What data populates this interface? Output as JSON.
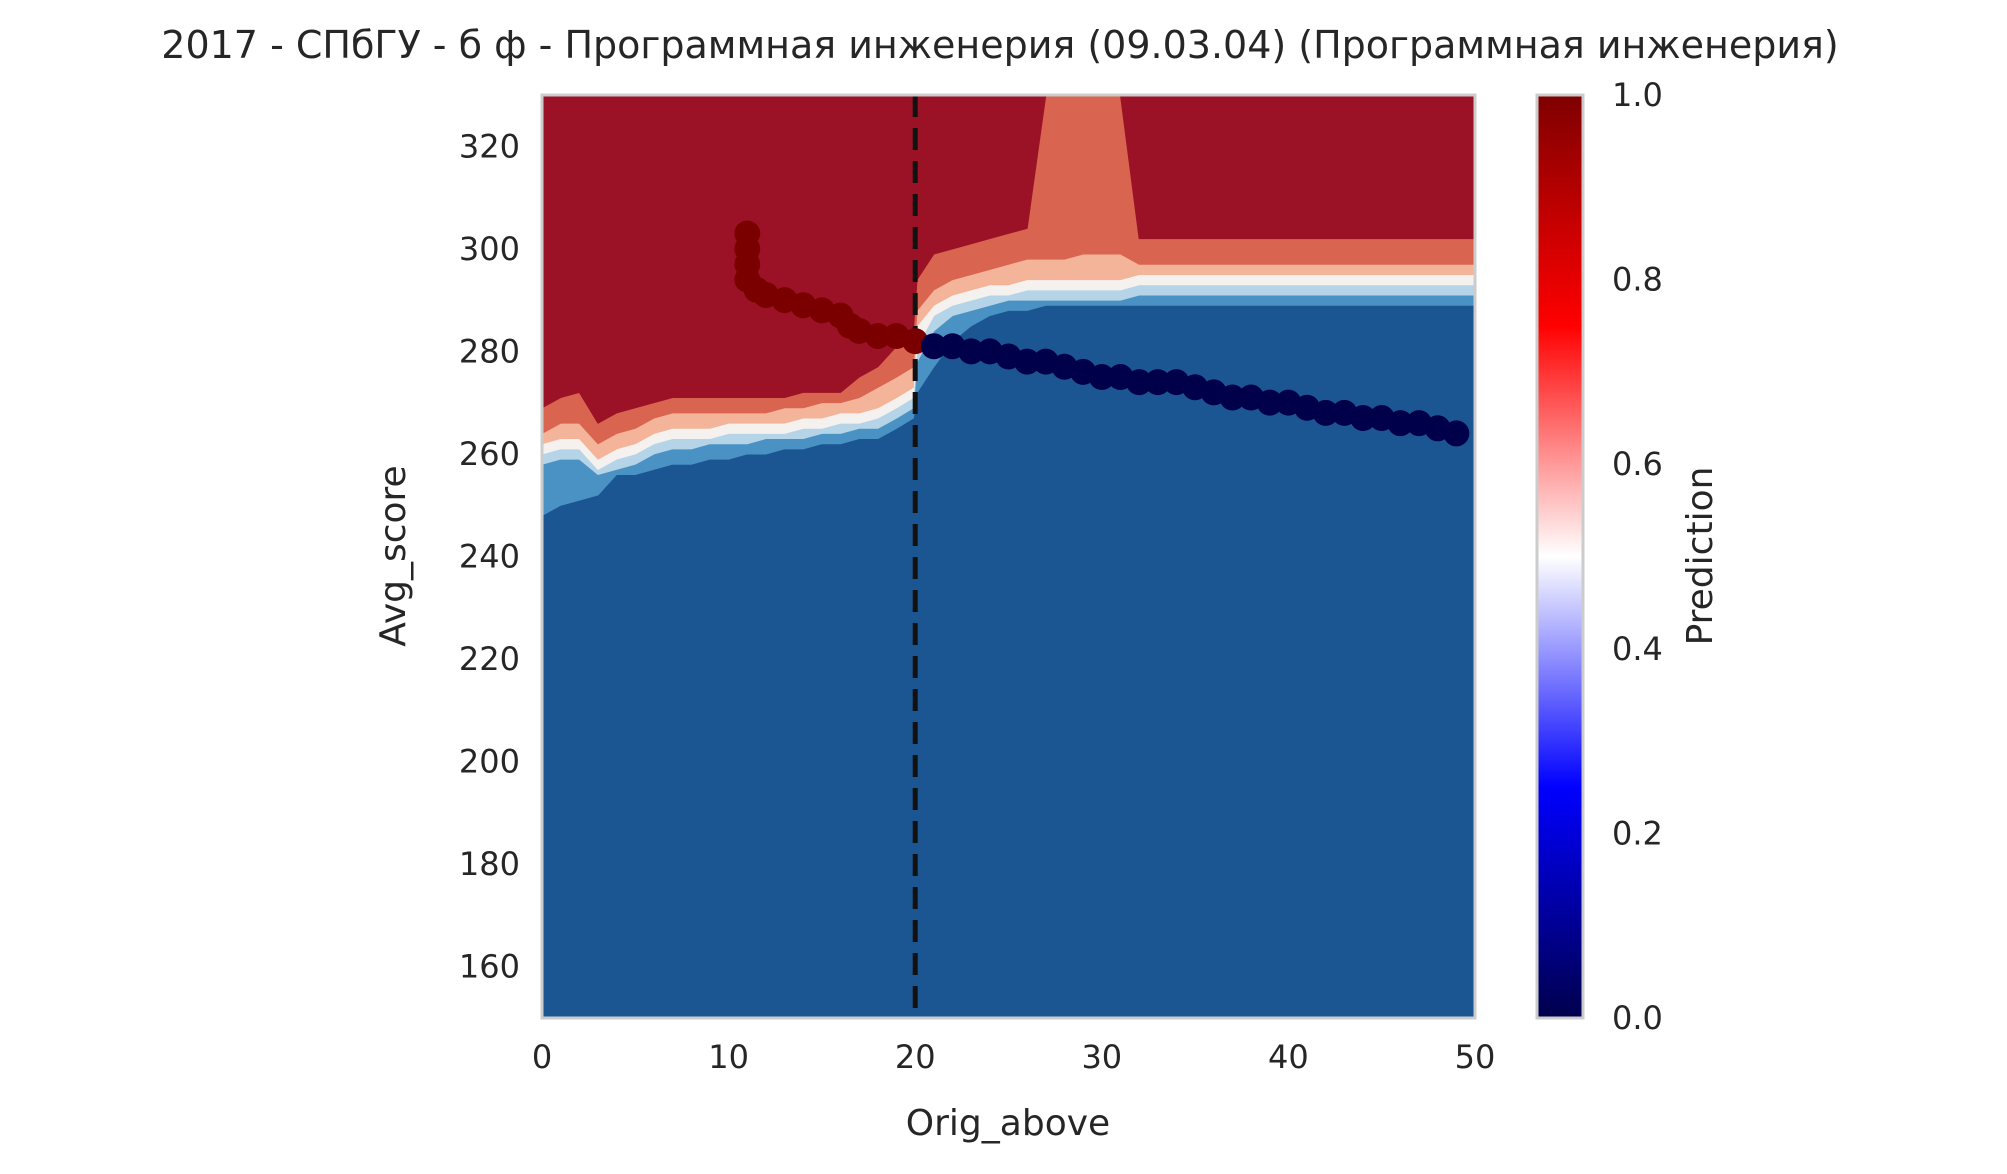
{
  "chart_data": {
    "type": "heatmap",
    "title": "2017 - СПбГУ - б ф - Программная инженерия (09.03.04) (Программная инженерия)",
    "xlabel": "Orig_above",
    "ylabel": "Avg_score",
    "xlim": [
      0,
      50
    ],
    "ylim": [
      150,
      330
    ],
    "x_ticks": [
      "0",
      "10",
      "20",
      "30",
      "40",
      "50"
    ],
    "y_ticks": [
      "160",
      "180",
      "200",
      "220",
      "240",
      "260",
      "280",
      "300",
      "320"
    ],
    "grid": false,
    "threshold_line": {
      "x": 20,
      "style": "dashed",
      "color": "#111111"
    },
    "colorbar": {
      "label": "Prediction",
      "range": [
        0,
        1
      ],
      "ticks": [
        "0.0",
        "0.2",
        "0.4",
        "0.6",
        "0.8",
        "1.0"
      ],
      "colormap": "seismic"
    },
    "region_colors": {
      "high": "#9b1227",
      "upper_mid": "#d96450",
      "mid_high": "#f4b49a",
      "neutral": "#f4f1ef",
      "mid_low": "#b5d4e8",
      "lower_mid": "#4a92c4",
      "low": "#1b5693"
    },
    "boundaries": {
      "x": [
        0,
        1,
        2,
        3,
        4,
        5,
        6,
        7,
        8,
        9,
        10,
        11,
        12,
        13,
        14,
        15,
        16,
        17,
        18,
        19,
        19.9,
        20.1,
        21,
        22,
        23,
        24,
        25,
        26,
        27,
        28,
        29,
        30,
        31,
        32,
        33,
        34,
        35,
        36,
        37,
        38,
        39,
        40,
        41,
        42,
        43,
        44,
        45,
        46,
        47,
        48,
        49,
        50
      ],
      "high": [
        269,
        271,
        272,
        266,
        268,
        269,
        270,
        271,
        271,
        271,
        271,
        271,
        271,
        271,
        272,
        272,
        272,
        275,
        277,
        281,
        284,
        294,
        299,
        300,
        301,
        302,
        303,
        304,
        330,
        330,
        330,
        330,
        330,
        302,
        302,
        302,
        302,
        302,
        302,
        302,
        302,
        302,
        302,
        302,
        302,
        302,
        302,
        302,
        302,
        302,
        302,
        302
      ],
      "upper_mid": [
        264,
        266,
        266,
        262,
        264,
        265,
        267,
        268,
        268,
        268,
        268,
        268,
        268,
        269,
        269,
        270,
        270,
        271,
        273,
        275,
        277,
        288,
        292,
        294,
        295,
        296,
        297,
        298,
        298,
        298,
        299,
        299,
        299,
        297,
        297,
        297,
        297,
        297,
        297,
        297,
        297,
        297,
        297,
        297,
        297,
        297,
        297,
        297,
        297,
        297,
        297,
        297
      ],
      "mid_high": [
        262,
        263,
        263,
        259,
        261,
        262,
        264,
        265,
        265,
        265,
        266,
        266,
        266,
        266,
        267,
        267,
        268,
        268,
        269,
        271,
        273,
        285,
        289,
        291,
        292,
        293,
        293,
        294,
        294,
        294,
        294,
        294,
        294,
        295,
        295,
        295,
        295,
        295,
        295,
        295,
        295,
        295,
        295,
        295,
        295,
        295,
        295,
        295,
        295,
        295,
        295,
        295
      ],
      "neutral": [
        260,
        261,
        261,
        257,
        259,
        260,
        262,
        263,
        263,
        263,
        264,
        264,
        264,
        264,
        265,
        265,
        266,
        266,
        267,
        269,
        271,
        281,
        287,
        289,
        290,
        291,
        291,
        292,
        292,
        292,
        292,
        292,
        292,
        293,
        293,
        293,
        293,
        293,
        293,
        293,
        293,
        293,
        293,
        293,
        293,
        293,
        293,
        293,
        293,
        293,
        293,
        293
      ],
      "mid_low": [
        258,
        259,
        259,
        256,
        257,
        258,
        260,
        261,
        261,
        262,
        262,
        262,
        263,
        263,
        263,
        264,
        264,
        265,
        265,
        267,
        269,
        278,
        284,
        287,
        288,
        289,
        290,
        290,
        290,
        290,
        290,
        290,
        290,
        291,
        291,
        291,
        291,
        291,
        291,
        291,
        291,
        291,
        291,
        291,
        291,
        291,
        291,
        291,
        291,
        291,
        291,
        291
      ],
      "lower_mid": [
        248,
        250,
        251,
        252,
        256,
        256,
        257,
        258,
        258,
        259,
        259,
        260,
        260,
        261,
        261,
        262,
        262,
        263,
        263,
        265,
        267,
        272,
        277,
        282,
        285,
        287,
        288,
        288,
        289,
        289,
        289,
        289,
        289,
        289,
        289,
        289,
        289,
        289,
        289,
        289,
        289,
        289,
        289,
        289,
        289,
        289,
        289,
        289,
        289,
        289,
        289,
        289
      ]
    },
    "series": [
      {
        "marker": "circle",
        "points_high": [
          [
            11,
            303
          ],
          [
            11,
            300
          ],
          [
            11,
            297
          ],
          [
            11,
            294
          ],
          [
            11.5,
            292
          ],
          [
            12,
            291
          ],
          [
            13,
            290
          ],
          [
            14,
            289
          ],
          [
            15,
            288
          ],
          [
            16,
            287
          ],
          [
            16.5,
            285
          ],
          [
            17,
            284
          ],
          [
            18,
            283
          ],
          [
            19,
            283
          ],
          [
            20,
            282
          ]
        ],
        "points_low": [
          [
            21,
            281
          ],
          [
            22,
            281
          ],
          [
            23,
            280
          ],
          [
            24,
            280
          ],
          [
            25,
            279
          ],
          [
            26,
            278
          ],
          [
            27,
            278
          ],
          [
            28,
            277
          ],
          [
            29,
            276
          ],
          [
            30,
            275
          ],
          [
            31,
            275
          ],
          [
            32,
            274
          ],
          [
            33,
            274
          ],
          [
            34,
            274
          ],
          [
            35,
            273
          ],
          [
            36,
            272
          ],
          [
            37,
            271
          ],
          [
            38,
            271
          ],
          [
            39,
            270
          ],
          [
            40,
            270
          ],
          [
            41,
            269
          ],
          [
            42,
            268
          ],
          [
            43,
            268
          ],
          [
            44,
            267
          ],
          [
            45,
            267
          ],
          [
            46,
            266
          ],
          [
            47,
            266
          ],
          [
            48,
            265
          ],
          [
            49,
            264
          ]
        ],
        "color_high": "#7a0000",
        "color_low": "#00004a"
      }
    ]
  }
}
